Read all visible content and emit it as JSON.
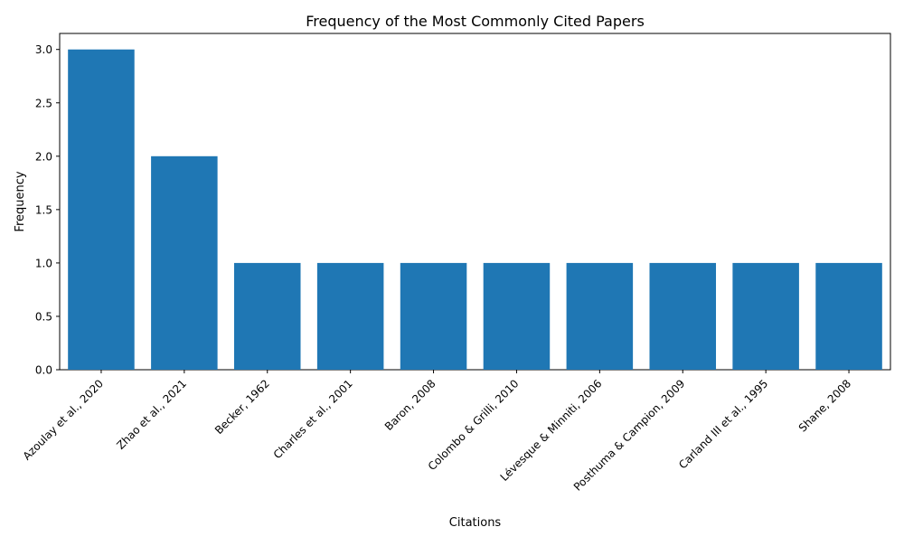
{
  "chart_data": {
    "type": "bar",
    "title": "Frequency of the Most Commonly Cited Papers",
    "xlabel": "Citations",
    "ylabel": "Frequency",
    "categories": [
      "Azoulay et al., 2020",
      "Zhao et al., 2021",
      "Becker, 1962",
      "Charles et al., 2001",
      "Baron, 2008",
      "Colombo & Grilli, 2010",
      "Lévesque & Minniti, 2006",
      "Posthuma & Campion, 2009",
      "Carland III et al., 1995",
      "Shane, 2008"
    ],
    "values": [
      3,
      2,
      1,
      1,
      1,
      1,
      1,
      1,
      1,
      1
    ],
    "ylim": [
      0,
      3.15
    ],
    "yticks": [
      0.0,
      0.5,
      1.0,
      1.5,
      2.0,
      2.5,
      3.0
    ],
    "ytick_labels": [
      "0.0",
      "0.5",
      "1.0",
      "1.5",
      "2.0",
      "2.5",
      "3.0"
    ],
    "grid": false,
    "colors": {
      "bar": "#1f77b4",
      "axis": "#000000",
      "background": "#ffffff"
    }
  }
}
